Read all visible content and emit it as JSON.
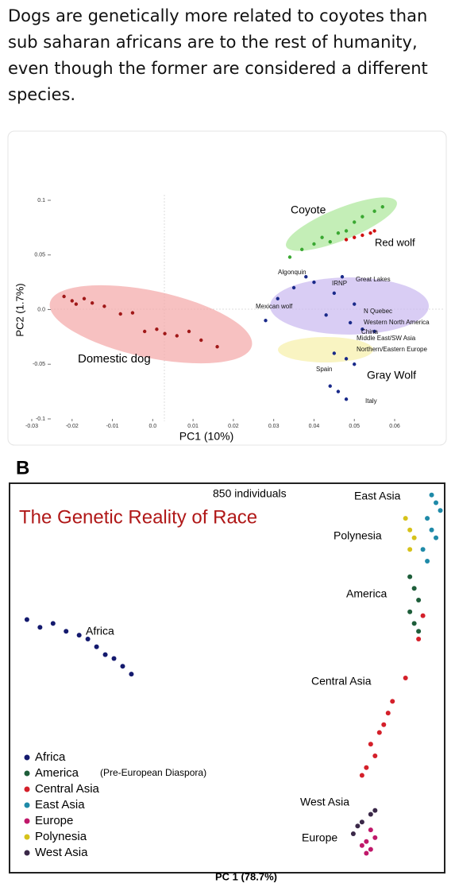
{
  "post": {
    "text": "Dogs are genetically more related to coyotes than sub saharan africans are to the rest of humanity, even though the former are considered a different species."
  },
  "chart_data": [
    {
      "type": "scatter",
      "xlabel": "PC1 (10%)",
      "ylabel": "PC2 (1.7%)",
      "xlim": [
        -0.03,
        0.06
      ],
      "ylim": [
        -0.1,
        0.1
      ],
      "xticks": [
        -0.03,
        -0.02,
        -0.01,
        {
          "value": 0,
          "label": "0.0"
        },
        0.01,
        0.02,
        0.03,
        0.04,
        0.05,
        0.06
      ],
      "yticks": [
        0.1,
        0.05,
        {
          "value": 0,
          "label": "0.0"
        },
        -0.05,
        -0.1
      ],
      "series": [
        {
          "name": "Domestic dog",
          "color": "#a01818",
          "x": [
            -0.022,
            -0.02,
            -0.019,
            -0.017,
            -0.015,
            -0.012,
            -0.008,
            -0.005,
            -0.002,
            0.001,
            0.003,
            0.006,
            0.009,
            0.012,
            0.016
          ],
          "y": [
            0.012,
            0.008,
            0.005,
            0.01,
            0.006,
            0.003,
            -0.004,
            -0.003,
            -0.02,
            -0.018,
            -0.022,
            -0.024,
            -0.02,
            -0.028,
            -0.034
          ]
        },
        {
          "name": "Coyote",
          "color": "#3aa832",
          "x": [
            0.034,
            0.037,
            0.04,
            0.042,
            0.044,
            0.046,
            0.048,
            0.05,
            0.052,
            0.055,
            0.057
          ],
          "y": [
            0.048,
            0.055,
            0.06,
            0.066,
            0.062,
            0.07,
            0.072,
            0.08,
            0.085,
            0.09,
            0.094
          ]
        },
        {
          "name": "Red wolf",
          "color": "#d01010",
          "x": [
            0.048,
            0.05,
            0.052,
            0.054,
            0.055
          ],
          "y": [
            0.064,
            0.066,
            0.068,
            0.07,
            0.072
          ]
        },
        {
          "name": "Gray Wolf",
          "color": "#1a2a8a",
          "x": [
            0.028,
            0.031,
            0.035,
            0.038,
            0.04,
            0.043,
            0.045,
            0.047,
            0.049,
            0.05,
            0.052,
            0.055,
            0.045,
            0.048,
            0.05,
            0.044,
            0.046,
            0.048
          ],
          "y": [
            -0.01,
            0.01,
            0.02,
            0.03,
            0.025,
            -0.005,
            0.015,
            0.03,
            -0.012,
            0.005,
            -0.018,
            -0.02,
            -0.04,
            -0.045,
            -0.05,
            -0.07,
            -0.075,
            -0.082
          ]
        }
      ],
      "annotations": [
        "Algonquin",
        "IRNP",
        "Great Lakes",
        "Mexican wolf",
        "N Quebec",
        "Western North America",
        "China",
        "Middle East/SW Asia",
        "Northern/Eastern Europe",
        "Spain",
        "Italy"
      ]
    },
    {
      "type": "scatter",
      "panel": "B",
      "title": "The Genetic Reality of Race",
      "subtitle": "850 individuals",
      "xlabel": "PC 1 (78.7%)",
      "legend_note": "(Pre-European Diaspora)",
      "series": [
        {
          "name": "Africa",
          "color": "#141a6e",
          "x": [
            0.04,
            0.07,
            0.1,
            0.13,
            0.16,
            0.18,
            0.2,
            0.22,
            0.24,
            0.26,
            0.28
          ],
          "y": [
            0.65,
            0.63,
            0.64,
            0.62,
            0.61,
            0.6,
            0.58,
            0.56,
            0.55,
            0.53,
            0.51
          ]
        },
        {
          "name": "America",
          "color": "#1e5e3a",
          "x": [
            0.92,
            0.93,
            0.94,
            0.92,
            0.93,
            0.94
          ],
          "y": [
            0.76,
            0.73,
            0.7,
            0.67,
            0.64,
            0.62
          ]
        },
        {
          "name": "Central Asia",
          "color": "#d4202a",
          "x": [
            0.95,
            0.94,
            0.91,
            0.88,
            0.87,
            0.86,
            0.85,
            0.83,
            0.84,
            0.82,
            0.81
          ],
          "y": [
            0.66,
            0.6,
            0.5,
            0.44,
            0.41,
            0.38,
            0.36,
            0.33,
            0.3,
            0.27,
            0.25
          ]
        },
        {
          "name": "East Asia",
          "color": "#1f8aa8",
          "x": [
            0.97,
            0.98,
            0.99,
            0.96,
            0.97,
            0.98,
            0.95,
            0.96
          ],
          "y": [
            0.97,
            0.95,
            0.93,
            0.91,
            0.88,
            0.86,
            0.83,
            0.8
          ]
        },
        {
          "name": "Europe",
          "color": "#c0186a",
          "x": [
            0.81,
            0.82,
            0.83,
            0.84,
            0.82,
            0.83
          ],
          "y": [
            0.07,
            0.08,
            0.06,
            0.09,
            0.05,
            0.11
          ]
        },
        {
          "name": "Polynesia",
          "color": "#d6c21a",
          "x": [
            0.91,
            0.92,
            0.93,
            0.92
          ],
          "y": [
            0.91,
            0.88,
            0.86,
            0.83
          ]
        },
        {
          "name": "West Asia",
          "color": "#3a2848",
          "x": [
            0.79,
            0.8,
            0.81,
            0.83,
            0.84
          ],
          "y": [
            0.1,
            0.12,
            0.13,
            0.15,
            0.16
          ]
        }
      ]
    }
  ]
}
